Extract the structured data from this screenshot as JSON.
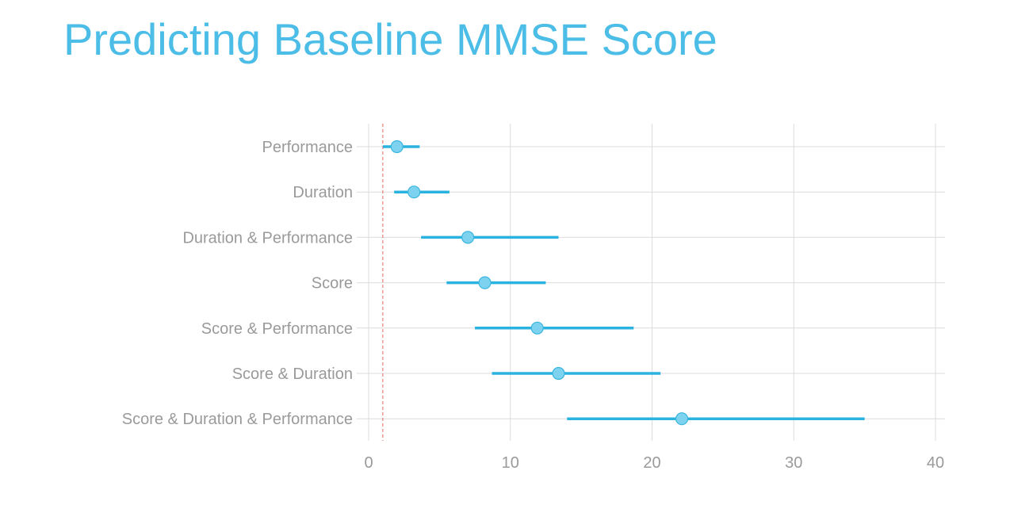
{
  "title": "Predicting Baseline MMSE Score",
  "colors": {
    "title": "#4bbde6",
    "interval": "#2bb3e0",
    "point_fill": "#7dd3ef",
    "point_stroke": "#3ab5df",
    "reference_line": "#e8665a",
    "grid": "#dcdcdc",
    "tick_text": "#9a9a9a"
  },
  "chart_data": {
    "type": "scatter",
    "subtype": "forest-plot",
    "title": "",
    "xlabel": "",
    "ylabel": "",
    "xlim": [
      0,
      40
    ],
    "xticks": [
      0,
      10,
      20,
      30,
      40
    ],
    "grid": true,
    "reference_line_x": 1,
    "legend": "none",
    "categories": [
      "Performance",
      "Duration",
      "Duration & Performance",
      "Score",
      "Score & Performance",
      "Score & Duration",
      "Score & Duration & Performance"
    ],
    "estimates": [
      2.0,
      3.2,
      7.0,
      8.2,
      11.9,
      13.4,
      22.1
    ],
    "lower": [
      1.0,
      1.8,
      3.7,
      5.5,
      7.5,
      8.7,
      14.0
    ],
    "upper": [
      3.6,
      5.7,
      13.4,
      12.5,
      18.7,
      20.6,
      35.0
    ]
  }
}
